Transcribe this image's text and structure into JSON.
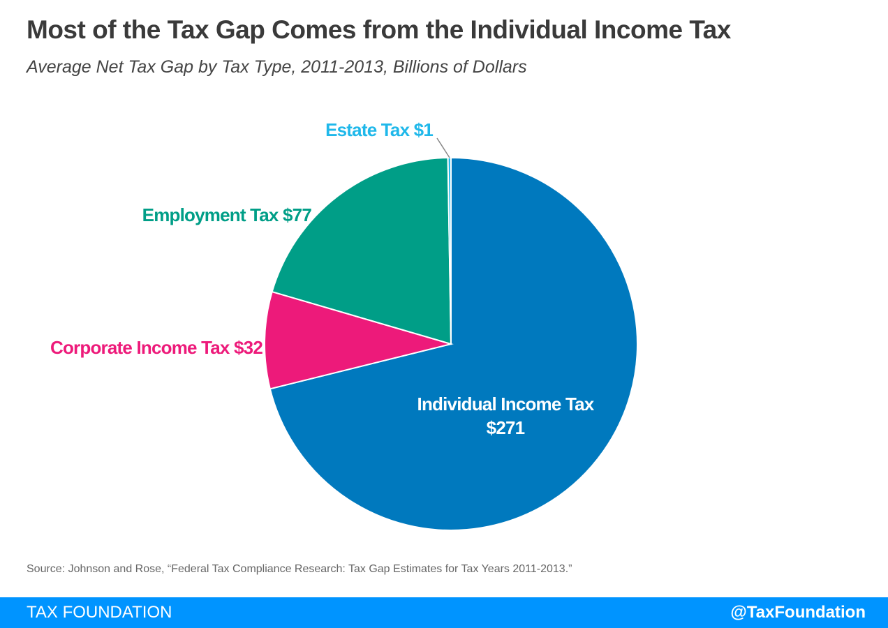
{
  "chart_data": {
    "type": "pie",
    "title": "Most of the Tax Gap Comes from the Individual Income Tax",
    "subtitle": "Average Net Tax Gap by Tax Type, 2011-2013, Billions of Dollars",
    "slices": [
      {
        "name": "Individual Income Tax",
        "value": 271,
        "label_line1": "Individual Income Tax",
        "label_line2": "$271",
        "color": "#0079be",
        "label_color": "#ffffff"
      },
      {
        "name": "Corporate Income Tax",
        "value": 32,
        "label_line1": "Corporate Income Tax $32",
        "color": "#ed1a7a",
        "label_color": "#ed1a7a"
      },
      {
        "name": "Employment Tax",
        "value": 77,
        "label_line1": "Employment Tax $77",
        "color": "#009e87",
        "label_color": "#009e87"
      },
      {
        "name": "Estate Tax",
        "value": 1,
        "label_line1": "Estate Tax $1",
        "color": "#1fb8ea",
        "label_color": "#1fb8ea"
      }
    ],
    "start_angle": "top, clockwise"
  },
  "source": "Source: Johnson and Rose, “Federal Tax Compliance Research: Tax Gap Estimates for Tax Years 2011-2013.”",
  "footer": {
    "brand": "TAX FOUNDATION",
    "handle": "@TaxFoundation",
    "color": "#0094ff"
  }
}
